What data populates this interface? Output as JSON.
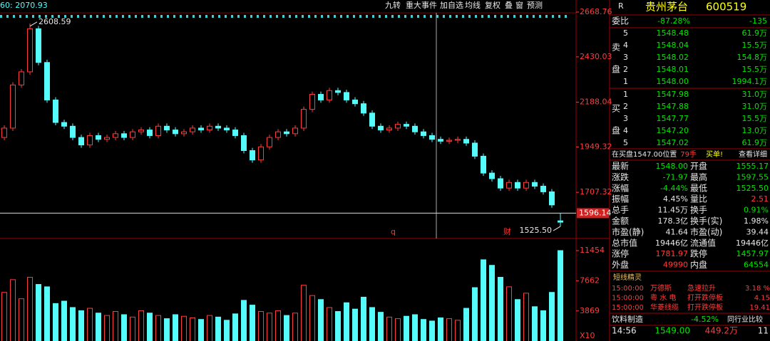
{
  "toolbar": {
    "indicator": "60: 2070.93",
    "buttons": [
      "九转",
      "重大事件",
      "加自选",
      "均线",
      "复权",
      "叠",
      "窗",
      "预测"
    ]
  },
  "chart_data": {
    "type": "candlestick",
    "ylim": [
      1480,
      2668.76
    ],
    "yticks": [
      2668.76,
      2430.03,
      2188.04,
      1949.32,
      1707.32
    ],
    "open": [
      2000,
      2050,
      2280,
      2350,
      2580,
      2400,
      2200,
      2080,
      2060,
      2000,
      1960,
      2010,
      1990,
      2000,
      2020,
      2000,
      2030,
      2040,
      2010,
      2060,
      2040,
      2020,
      2030,
      2050,
      2040,
      2060,
      2050,
      2040,
      2010,
      1930,
      1880,
      1950,
      2000,
      2030,
      2020,
      2050,
      2150,
      2230,
      2200,
      2250,
      2240,
      2200,
      2180,
      2130,
      2060,
      2040,
      2050,
      2070,
      2060,
      2030,
      2010,
      1990,
      1980,
      1985,
      1990,
      1970,
      1900,
      1810,
      1780,
      1730,
      1760,
      1730,
      1760,
      1740,
      1710,
      1555.17
    ],
    "high": [
      2065,
      2295,
      2365,
      2608.59,
      2595,
      2415,
      2215,
      2095,
      2075,
      2015,
      2025,
      2025,
      2015,
      2035,
      2035,
      2045,
      2055,
      2055,
      2075,
      2075,
      2055,
      2045,
      2065,
      2065,
      2075,
      2075,
      2065,
      2055,
      2025,
      1945,
      1965,
      2015,
      2045,
      2045,
      2065,
      2165,
      2245,
      2245,
      2265,
      2265,
      2255,
      2215,
      2195,
      2145,
      2075,
      2065,
      2085,
      2085,
      2075,
      2045,
      2025,
      2005,
      2000,
      2005,
      2005,
      1985,
      1915,
      1825,
      1795,
      1775,
      1775,
      1775,
      1775,
      1755,
      1725,
      1597.55
    ],
    "low": [
      1985,
      2035,
      2265,
      2335,
      2385,
      2185,
      2065,
      2045,
      1985,
      1945,
      1945,
      1975,
      1975,
      1985,
      1985,
      1985,
      2015,
      1995,
      1995,
      2025,
      2005,
      2005,
      2015,
      2025,
      2025,
      2035,
      2025,
      1995,
      1915,
      1865,
      1865,
      1935,
      1985,
      2005,
      2005,
      2035,
      2135,
      2185,
      2185,
      2225,
      2185,
      2165,
      2115,
      2045,
      2025,
      2025,
      2035,
      2045,
      2015,
      1995,
      1975,
      1965,
      1965,
      1970,
      1955,
      1885,
      1795,
      1765,
      1715,
      1715,
      1715,
      1715,
      1725,
      1695,
      1625,
      1525.5
    ],
    "close": [
      2050,
      2280,
      2350,
      2580,
      2400,
      2200,
      2080,
      2060,
      2000,
      1960,
      2010,
      1990,
      2000,
      2020,
      2000,
      2030,
      2040,
      2010,
      2060,
      2040,
      2020,
      2030,
      2050,
      2040,
      2060,
      2050,
      2040,
      2010,
      1930,
      1880,
      1950,
      2000,
      2030,
      2020,
      2050,
      2150,
      2230,
      2200,
      2250,
      2240,
      2200,
      2180,
      2130,
      2060,
      2040,
      2050,
      2070,
      2060,
      2030,
      2010,
      1990,
      1980,
      1985,
      1990,
      1970,
      1900,
      1810,
      1780,
      1730,
      1760,
      1730,
      1760,
      1740,
      1710,
      1640,
      1548
    ],
    "low_value_label": "1525.50",
    "price_line": 1596.14,
    "events": [
      "q",
      "财"
    ],
    "volume": {
      "ylim": [
        0,
        11454
      ],
      "yticks": [
        11454,
        7662,
        3869
      ],
      "unit": "X10",
      "values": [
        6200,
        7800,
        5400,
        8100,
        7200,
        6900,
        4800,
        5100,
        4300,
        3900,
        4200,
        3600,
        3300,
        3800,
        3400,
        3100,
        3900,
        3600,
        3300,
        2900,
        3400,
        3200,
        3000,
        2800,
        3300,
        3100,
        2700,
        3500,
        5200,
        4600,
        3800,
        3600,
        3900,
        3300,
        3600,
        7100,
        5800,
        5300,
        4300,
        3800,
        4900,
        4100,
        5600,
        4300,
        3700,
        3100,
        2900,
        3200,
        3400,
        2800,
        2600,
        3000,
        2900,
        2700,
        4200,
        6800,
        10300,
        9600,
        8100,
        6900,
        5300,
        6100,
        4400,
        3900,
        6200,
        11454
      ]
    }
  },
  "quote": {
    "flag": "R",
    "name": "贵州茅台",
    "code": "600519",
    "ratio": {
      "label": "委比",
      "pct": "-87.28%",
      "diff": "-135"
    },
    "sell_side": [
      "卖",
      "盘"
    ],
    "buy_side": [
      "买",
      "盘"
    ],
    "asks": [
      [
        "5",
        "1548.48",
        "61.9万"
      ],
      [
        "4",
        "1548.04",
        "15.5万"
      ],
      [
        "3",
        "1548.02",
        "154.8万"
      ],
      [
        "2",
        "1548.01",
        "15.5万"
      ],
      [
        "1",
        "1548.00",
        "1994.1万"
      ]
    ],
    "bids": [
      [
        "1",
        "1547.98",
        "31.0万"
      ],
      [
        "2",
        "1547.88",
        "31.0万"
      ],
      [
        "3",
        "1547.77",
        "15.5万"
      ],
      [
        "4",
        "1547.20",
        "13.0万"
      ],
      [
        "5",
        "1547.02",
        "61.9万"
      ]
    ],
    "notice": {
      "text": "在买盘1547.00位置",
      "qty": "79手",
      "tag": "买单!",
      "link": "查看详细"
    },
    "stats": [
      [
        "最新",
        "1548.00",
        "开盘",
        "1555.17"
      ],
      [
        "涨跌",
        "-71.97",
        "最高",
        "1597.55"
      ],
      [
        "涨幅",
        "-4.44%",
        "最低",
        "1525.50"
      ],
      [
        "振幅",
        "4.45%",
        "量比",
        "2.51"
      ],
      [
        "总手",
        "11.45万",
        "换手",
        "0.91%"
      ],
      [
        "金额",
        "178.3亿",
        "换手(实)",
        "1.98%"
      ],
      [
        "市盈(静)",
        "41.64",
        "市盈(动)",
        "39.44"
      ],
      [
        "总市值",
        "19446亿",
        "流通值",
        "19446亿"
      ],
      [
        "涨停",
        "1781.97",
        "跌停",
        "1457.97"
      ],
      [
        "外盘",
        "49990",
        "内盘",
        "64554"
      ]
    ],
    "alerts_title": "短线精灵",
    "alerts": [
      [
        "15:00:00",
        "万德斯",
        "急速拉升",
        "3.18 %"
      ],
      [
        "15:00:00",
        "粤 水 电",
        "打开跌停板",
        "4.15"
      ],
      [
        "15:00:00",
        "华菱线缆",
        "打开跌停板",
        "19.41"
      ]
    ],
    "industry": {
      "name": "饮料制造",
      "change": "-4.52%",
      "link": "同行业比较"
    },
    "ticks": [
      [
        "14:56",
        "1549.00",
        "449.2万",
        "11"
      ]
    ]
  }
}
